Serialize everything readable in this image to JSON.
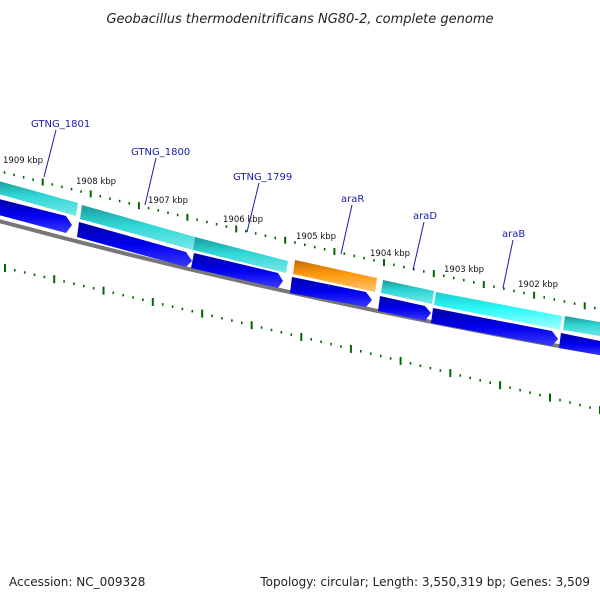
{
  "title": "Geobacillus thermodenitrificans NG80-2, complete genome",
  "footer": {
    "accession": "Accession: NC_009328",
    "summary": "Topology: circular; Length: 3,550,319 bp; Genes: 3,509"
  },
  "kbp_labels": [
    "1909 kbp",
    "1908 kbp",
    "1907 kbp",
    "1906 kbp",
    "1905 kbp",
    "1904 kbp",
    "1903 kbp",
    "1902 kbp"
  ],
  "gene_labels": [
    "GTNG_1801",
    "GTNG_1800",
    "GTNG_1799",
    "araR",
    "araD",
    "araB"
  ],
  "colors": {
    "gene_teal": "#22c4c4",
    "gene_highlight": "#ff9a10",
    "gene_cyan": "#22ffff",
    "cds_arrow": "#0000ee",
    "backbone": "#777777",
    "ticks": "#006600",
    "gene_label": "#1a1aaa"
  }
}
